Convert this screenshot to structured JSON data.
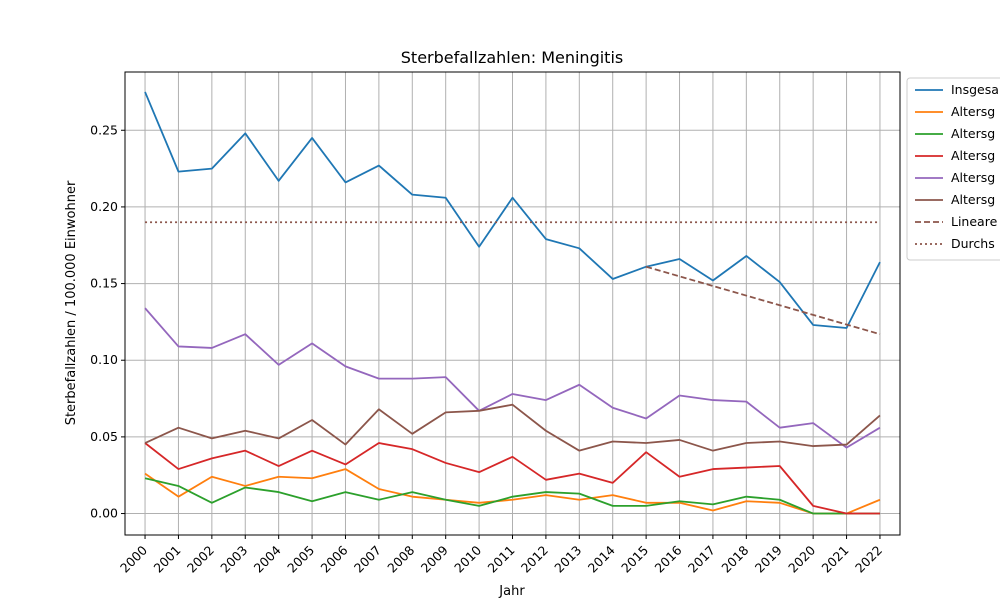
{
  "chart_data": {
    "type": "line",
    "title": "Sterbefallzahlen: Meningitis",
    "xlabel": "Jahr",
    "ylabel": "Sterbefallzahlen / 100.000 Einwohner",
    "x": [
      "2000",
      "2001",
      "2002",
      "2003",
      "2004",
      "2005",
      "2006",
      "2007",
      "2008",
      "2009",
      "2010",
      "2011",
      "2012",
      "2013",
      "2014",
      "2015",
      "2016",
      "2017",
      "2018",
      "2019",
      "2020",
      "2021",
      "2022"
    ],
    "ylim": [
      -0.014,
      0.288
    ],
    "yticks": [
      "0.00",
      "0.05",
      "0.10",
      "0.15",
      "0.20",
      "0.25"
    ],
    "ytick_values": [
      0.0,
      0.05,
      0.1,
      0.15,
      0.2,
      0.25
    ],
    "grid": true,
    "legend_position": "outside-right",
    "series": [
      {
        "name": "Insgesa",
        "color": "#1f77b4",
        "style": "solid",
        "values": [
          0.275,
          0.223,
          0.225,
          0.248,
          0.217,
          0.245,
          0.216,
          0.227,
          0.208,
          0.206,
          0.174,
          0.206,
          0.179,
          0.173,
          0.153,
          0.161,
          0.166,
          0.152,
          0.168,
          0.151,
          0.123,
          0.121,
          0.164
        ]
      },
      {
        "name": "Altersg",
        "color": "#ff7f0e",
        "style": "solid",
        "values": [
          0.026,
          0.011,
          0.024,
          0.018,
          0.024,
          0.023,
          0.029,
          0.016,
          0.011,
          0.009,
          0.007,
          0.009,
          0.012,
          0.009,
          0.012,
          0.007,
          0.007,
          0.002,
          0.008,
          0.007,
          0.0,
          0.0,
          0.009
        ]
      },
      {
        "name": "Altersg",
        "color": "#2ca02c",
        "style": "solid",
        "values": [
          0.023,
          0.018,
          0.007,
          0.017,
          0.014,
          0.008,
          0.014,
          0.009,
          0.014,
          0.009,
          0.005,
          0.011,
          0.014,
          0.013,
          0.005,
          0.005,
          0.008,
          0.006,
          0.011,
          0.009,
          0.0,
          0.0,
          0.0
        ]
      },
      {
        "name": "Altersg",
        "color": "#d62728",
        "style": "solid",
        "values": [
          0.046,
          0.029,
          0.036,
          0.041,
          0.031,
          0.041,
          0.032,
          0.046,
          0.042,
          0.033,
          0.027,
          0.037,
          0.022,
          0.026,
          0.02,
          0.04,
          0.024,
          0.029,
          0.03,
          0.031,
          0.005,
          0.0,
          0.0
        ]
      },
      {
        "name": "Altersg",
        "color": "#9467bd",
        "style": "solid",
        "values": [
          0.134,
          0.109,
          0.108,
          0.117,
          0.097,
          0.111,
          0.096,
          0.088,
          0.088,
          0.089,
          0.067,
          0.078,
          0.074,
          0.084,
          0.069,
          0.062,
          0.077,
          0.074,
          0.073,
          0.056,
          0.059,
          0.043,
          0.056
        ]
      },
      {
        "name": "Altersg",
        "color": "#8c564b",
        "style": "solid",
        "values": [
          0.046,
          0.056,
          0.049,
          0.054,
          0.049,
          0.061,
          0.045,
          0.068,
          0.052,
          0.066,
          0.067,
          0.071,
          0.054,
          0.041,
          0.047,
          0.046,
          0.048,
          0.041,
          0.046,
          0.047,
          0.044,
          0.045,
          0.064
        ]
      },
      {
        "name": "Lineare",
        "color": "#8c564b",
        "style": "dashed",
        "x": [
          "2015",
          "2022"
        ],
        "values": [
          0.161,
          0.117
        ]
      },
      {
        "name": "Durchs",
        "color": "#8c564b",
        "style": "dotted",
        "x": [
          "2000",
          "2022"
        ],
        "values": [
          0.19,
          0.19
        ]
      }
    ]
  }
}
